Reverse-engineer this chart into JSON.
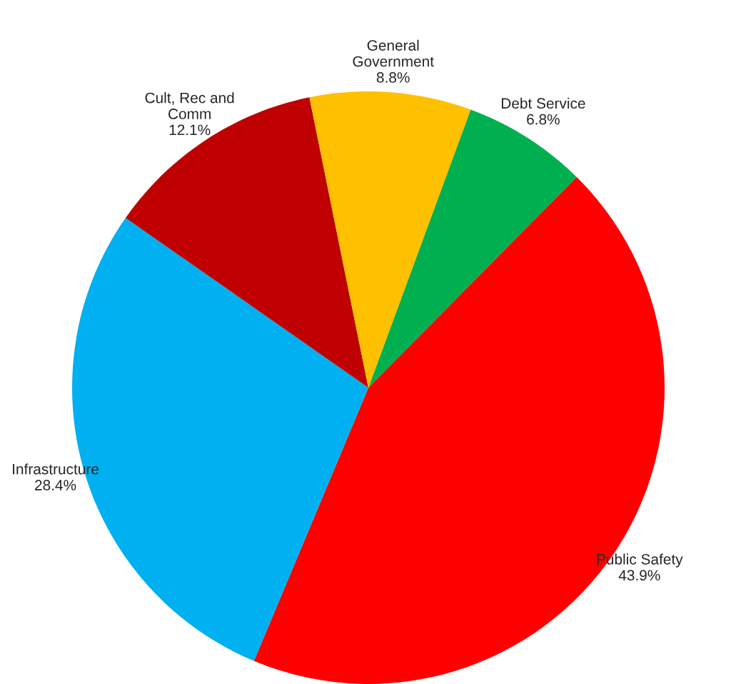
{
  "chart_data": {
    "type": "pie",
    "categories": [
      "Debt Service",
      "Public Safety",
      "Infrastructure",
      "Cult, Rec and\nComm",
      "General\nGovernment"
    ],
    "values": [
      6.8,
      43.9,
      28.4,
      12.1,
      8.8
    ],
    "colors": [
      "#00b050",
      "#ff0000",
      "#00b0f0",
      "#c00000",
      "#ffc000"
    ],
    "value_labels": [
      "6.8%",
      "43.9%",
      "28.4%",
      "12.1%",
      "8.8%"
    ],
    "legend": false
  }
}
